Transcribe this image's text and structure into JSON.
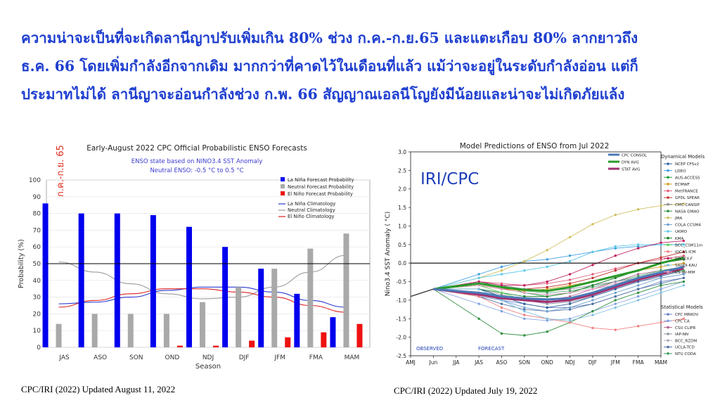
{
  "headline": {
    "line1": "ความน่าจะเป็นที่จะเกิดลานีญาปรับเพิ่มเกิน 80% ช่วง ก.ค.-ก.ย.65 และแตะเกือบ 80% ลากยาวถึง",
    "line2": "ธ.ค. 66 โดยเพิ่มกำลังอีกจากเดิม มากกว่าที่คาดไว้ในเดือนที่แล้ว แม้ว่าจะอยู่ในระดับกำลังอ่อน แต่ก็",
    "line3": "ประมาทไม่ได้ ลานีญาจะอ่อนกำลังช่วง ก.พ. 66 สัญญาณเอลนีโญยังมีน้อยและน่าจะไม่เกิดภัยแล้ง"
  },
  "captions": {
    "left": "CPC/IRI (2022) Updated  August 11, 2022",
    "right": "CPC/IRI (2022) Updated July 19, 2022"
  },
  "colors": {
    "headline": "#1f3fd0",
    "lanina": "#0000ee",
    "neutral": "#a9a9a9",
    "elnino": "#ee1111"
  },
  "chart_data": [
    {
      "type": "bar",
      "title": "Early-August 2022 CPC Official Probabilistic ENSO Forecasts",
      "subtitle": [
        "ENSO state based on NINO3.4 SST Anomaly",
        "Neutral ENSO: -0.5 °C to 0.5 °C"
      ],
      "annotation": "ก.ค.-ก.ย. 65",
      "xlabel": "Season",
      "ylabel": "Probability (%)",
      "ylim": [
        0,
        100
      ],
      "yticks": [
        0,
        10,
        20,
        30,
        40,
        50,
        60,
        70,
        80,
        90,
        100
      ],
      "reference_line": 50,
      "categories": [
        "JAS",
        "ASO",
        "SON",
        "OND",
        "NDJ",
        "DJF",
        "JFM",
        "FMA",
        "MAM"
      ],
      "legend_placement": "top-right",
      "series": [
        {
          "name": "La Niña Forecast Probability",
          "values": [
            86,
            80,
            80,
            79,
            72,
            60,
            47,
            32,
            18
          ]
        },
        {
          "name": "Neutral Forecast Probability",
          "values": [
            14,
            20,
            20,
            20,
            27,
            36,
            47,
            59,
            68
          ]
        },
        {
          "name": "El Niño Forecast Probability",
          "values": [
            0,
            0,
            0,
            1,
            1,
            4,
            6,
            9,
            14
          ]
        }
      ],
      "climatology": [
        {
          "name": "La Niña Climatology",
          "values": [
            26,
            27,
            30,
            34,
            36,
            36,
            33,
            28,
            24
          ]
        },
        {
          "name": "Neutral Climatology",
          "values": [
            51,
            45,
            38,
            32,
            29,
            30,
            36,
            45,
            55
          ]
        },
        {
          "name": "El Niño Climatology",
          "values": [
            24,
            28,
            32,
            35,
            35,
            33,
            30,
            25,
            21
          ]
        }
      ]
    },
    {
      "type": "line",
      "title": "Model Predictions of ENSO from Jul 2022",
      "watermark": "IRI/CPC",
      "ylabel": "Nino3.4 SST Anomaly ( °C)",
      "ylim": [
        -2.5,
        3.0
      ],
      "yticks": [
        -2.5,
        -2.0,
        -1.5,
        -1.0,
        -0.5,
        0.0,
        0.5,
        1.0,
        1.5,
        2.0,
        2.5,
        3.0
      ],
      "x": [
        "AMJ",
        "Jun",
        "JJA",
        "JAS",
        "ASO",
        "SON",
        "OND",
        "NDJ",
        "DJF",
        "JFM",
        "FMA",
        "MAM"
      ],
      "observed_label": "OBSERVED",
      "forecast_label": "FORECAST",
      "observed": [
        -0.9,
        -0.7
      ],
      "legend_top": [
        {
          "name": "CPC CONSOL",
          "color": "#4a7ab8"
        },
        {
          "name": "DYN AVG",
          "color": "#2a9a2a"
        },
        {
          "name": "STAT AVG",
          "color": "#a0306e"
        }
      ],
      "averages": [
        {
          "name": "DYN AVG",
          "color": "#2a9a2a",
          "values": [
            -0.55,
            -0.65,
            -0.72,
            -0.75,
            -0.65,
            -0.5,
            -0.35,
            -0.2,
            0.0,
            0.15
          ]
        },
        {
          "name": "STAT AVG",
          "color": "#a0306e",
          "values": [
            -0.85,
            -0.95,
            -1.0,
            -1.05,
            -1.0,
            -0.85,
            -0.65,
            -0.45,
            -0.3,
            -0.15
          ]
        },
        {
          "name": "CPC CONSOL",
          "color": "#4a7ab8",
          "values": [
            -0.8,
            -0.9,
            -0.95,
            -0.98,
            -0.95,
            -0.8,
            -0.6,
            -0.4,
            -0.25,
            -0.1
          ]
        }
      ],
      "dynamical_title": "Dynamical Models",
      "dynamical_models": [
        {
          "name": "NCEP CFSv2",
          "color": "#3060a0",
          "values": [
            -0.7,
            -0.9,
            -1.1,
            -1.2,
            -1.1,
            -0.9,
            -0.7,
            -0.5,
            -0.35,
            -0.2
          ]
        },
        {
          "name": "LDEO",
          "color": "#40a0e0",
          "values": [
            -0.3,
            -0.1,
            0.05,
            0.1,
            0.2,
            0.3,
            0.4,
            0.45,
            0.5,
            0.5
          ]
        },
        {
          "name": "AUS-ACCESS",
          "color": "#20a040",
          "values": [
            -0.5,
            -0.6,
            -0.8,
            -0.9,
            -0.8,
            -0.6,
            -0.4,
            -0.2,
            0.0,
            0.1
          ]
        },
        {
          "name": "ECMWF",
          "color": "#d0a020",
          "values": [
            -0.6,
            -0.7,
            -0.75,
            -0.7,
            -0.6,
            -0.5,
            -0.35,
            -0.2,
            -0.1,
            0.0
          ]
        },
        {
          "name": "MetFRANCE",
          "color": "#e06080",
          "values": [
            -0.5,
            -0.55,
            -0.6,
            -0.55,
            -0.45,
            -0.3,
            -0.15,
            0.0,
            0.1,
            0.2
          ]
        },
        {
          "name": "GFDL SPEAR",
          "color": "#c03030",
          "values": [
            -0.6,
            -0.7,
            -0.7,
            -0.65,
            -0.55,
            -0.4,
            -0.2,
            0.0,
            0.15,
            0.3
          ]
        },
        {
          "name": "CMC CANSIP",
          "color": "#9090a0",
          "values": [
            -0.5,
            -0.6,
            -0.7,
            -0.75,
            -0.7,
            -0.6,
            -0.5,
            -0.4,
            -0.3,
            -0.2
          ]
        },
        {
          "name": "NASA GMAO",
          "color": "#309040",
          "values": [
            -1.5,
            -1.9,
            -1.95,
            -1.85,
            -1.6,
            -1.3,
            -1.0,
            -0.8,
            -0.6,
            -0.5
          ]
        },
        {
          "name": "JMA",
          "color": "#d0c060",
          "values": [
            -0.4,
            -0.2,
            0.05,
            0.35,
            0.7,
            1.05,
            1.3,
            1.45,
            1.55,
            1.6
          ]
        },
        {
          "name": "COLA CCSM4",
          "color": "#70a0d0",
          "values": [
            -0.8,
            -1.0,
            -1.2,
            -1.3,
            -1.2,
            -1.0,
            -0.8,
            -0.6,
            -0.4,
            -0.3
          ]
        },
        {
          "name": "UKMO",
          "color": "#60c8e8",
          "values": [
            -0.4,
            -0.3,
            -0.2,
            -0.1,
            0.05,
            0.3,
            0.45,
            0.5,
            0.5,
            0.5
          ]
        },
        {
          "name": "KMA",
          "color": "#208030",
          "values": [
            -0.7,
            -0.8,
            -0.9,
            -0.9,
            -0.8,
            -0.6,
            -0.4,
            -0.2,
            0.0,
            0.1
          ]
        },
        {
          "name": "BCC_CSM11m",
          "color": "#60d060",
          "values": [
            -0.6,
            -0.8,
            -1.0,
            -1.05,
            -1.0,
            -0.8,
            -0.6,
            -0.4,
            -0.3,
            -0.2
          ]
        },
        {
          "name": "IOCAS ICM",
          "color": "#f08080",
          "values": [
            -0.9,
            -1.2,
            -1.4,
            -1.5,
            -1.6,
            -1.75,
            -1.8,
            -1.7,
            -1.6,
            -1.5
          ]
        },
        {
          "name": "SINTEX-F",
          "color": "#c02060",
          "values": [
            -0.5,
            -0.6,
            -0.6,
            -0.5,
            -0.3,
            -0.05,
            0.2,
            0.4,
            0.55,
            0.6
          ]
        },
        {
          "name": "SAUDI-KAU",
          "color": "#80c0e0",
          "values": [
            -0.7,
            -1.0,
            -1.3,
            -1.5,
            -1.55,
            -1.4,
            -1.2,
            -1.0,
            -0.8,
            -0.6
          ]
        },
        {
          "name": "CS-IRI-MM",
          "color": "#e0a0c0",
          "values": [
            -0.6,
            -0.7,
            -0.8,
            -0.85,
            -0.8,
            -0.7,
            -0.55,
            -0.4,
            -0.25,
            -0.1
          ]
        }
      ],
      "statistical_title": "Statistical Models",
      "statistical_models": [
        {
          "name": "CPC MRKOV",
          "color": "#6080c0",
          "values": [
            -0.9,
            -1.0,
            -1.1,
            -1.2,
            -1.2,
            -1.1,
            -0.9,
            -0.7,
            -0.5,
            -0.4
          ]
        },
        {
          "name": "CPC CA",
          "color": "#80a0e0",
          "values": [
            -1.1,
            -1.3,
            -1.5,
            -1.55,
            -1.5,
            -1.3,
            -1.1,
            -0.9,
            -0.7,
            -0.5
          ]
        },
        {
          "name": "CSU CLIPR",
          "color": "#b06090",
          "values": [
            -0.8,
            -0.9,
            -1.0,
            -1.0,
            -0.9,
            -0.7,
            -0.5,
            -0.3,
            -0.2,
            -0.1
          ]
        },
        {
          "name": "IAP-NN",
          "color": "#9090a0",
          "values": [
            -0.7,
            -0.85,
            -1.0,
            -1.1,
            -1.05,
            -0.9,
            -0.7,
            -0.5,
            -0.35,
            -0.2
          ]
        },
        {
          "name": "BCC_RZDM",
          "color": "#b0b0c0",
          "values": [
            -0.6,
            -0.7,
            -0.8,
            -0.85,
            -0.8,
            -0.7,
            -0.6,
            -0.5,
            -0.4,
            -0.3
          ]
        },
        {
          "name": "UCLA-TCD",
          "color": "#5070a0",
          "values": [
            -0.9,
            -1.1,
            -1.25,
            -1.3,
            -1.25,
            -1.1,
            -0.9,
            -0.7,
            -0.55,
            -0.4
          ]
        },
        {
          "name": "NTU CODA",
          "color": "#40a060",
          "values": [
            -0.5,
            -0.65,
            -0.75,
            -0.8,
            -0.75,
            -0.65,
            -0.5,
            -0.35,
            -0.2,
            -0.1
          ]
        }
      ]
    }
  ]
}
